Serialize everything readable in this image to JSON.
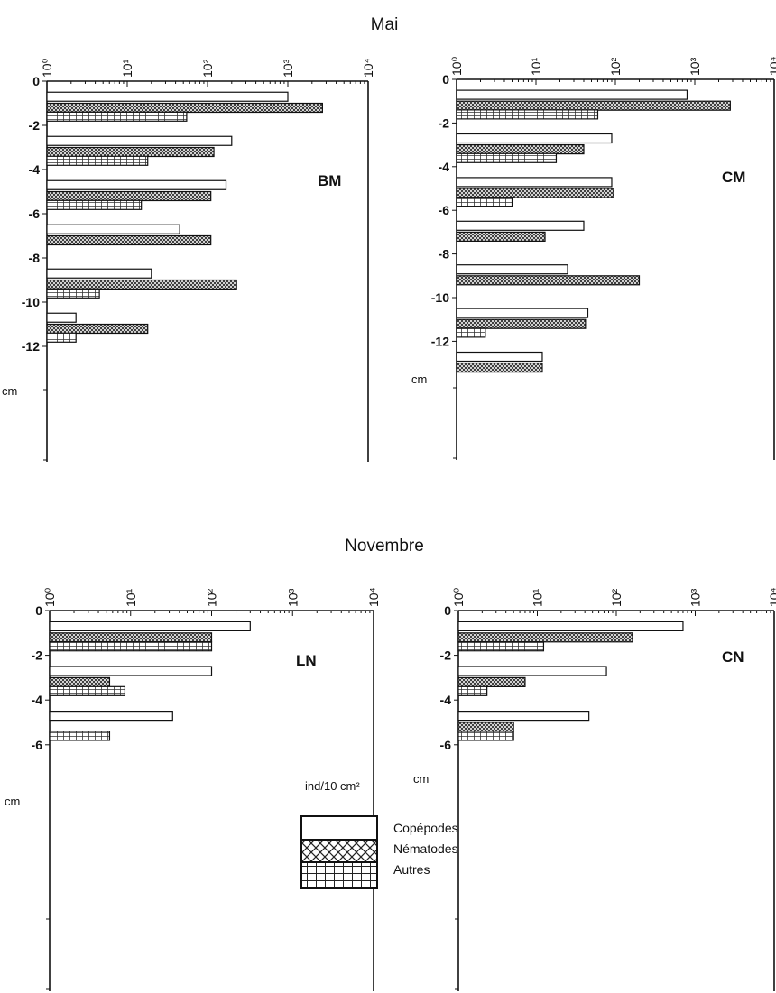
{
  "titles": {
    "top": "Mai",
    "bottom": "Novembre"
  },
  "legend": {
    "unit": "ind/10 cm²",
    "items": [
      {
        "label": "Copépodes",
        "pattern": "copepodes"
      },
      {
        "label": "Nématodes",
        "pattern": "nematodes"
      },
      {
        "label": "Autres",
        "pattern": "autres"
      }
    ]
  },
  "chart_data": [
    {
      "type": "bar",
      "orientation": "horizontal",
      "panel_label": "BM",
      "x_scale": "log",
      "x_range": [
        1,
        10000
      ],
      "x_tick_labels": [
        "10⁰",
        "10¹",
        "10²",
        "10³",
        "10⁴"
      ],
      "y_tick_labels": [
        "0",
        "-2",
        "-4",
        "-6",
        "-8",
        "-10",
        "-12"
      ],
      "y_unit": "cm",
      "categories": [
        "0-2",
        "2-4",
        "4-6",
        "6-8",
        "8-10",
        "10-12"
      ],
      "series": [
        {
          "name": "Copépodes",
          "values": [
            1000,
            200,
            170,
            45,
            20,
            2.3
          ]
        },
        {
          "name": "Nématodes",
          "values": [
            2700,
            120,
            110,
            110,
            230,
            18
          ]
        },
        {
          "name": "Autres",
          "values": [
            55,
            18,
            15,
            null,
            4.5,
            2.3
          ]
        }
      ]
    },
    {
      "type": "bar",
      "orientation": "horizontal",
      "panel_label": "CM",
      "x_scale": "log",
      "x_range": [
        1,
        10000
      ],
      "x_tick_labels": [
        "10⁰",
        "10¹",
        "10²",
        "10³",
        "10⁴"
      ],
      "y_tick_labels": [
        "0",
        "-2",
        "-4",
        "-6",
        "-8",
        "-10",
        "-12"
      ],
      "y_unit": "cm",
      "categories": [
        "0-2",
        "2-4",
        "4-6",
        "6-8",
        "8-10",
        "10-12",
        "12-14"
      ],
      "series": [
        {
          "name": "Copépodes",
          "values": [
            800,
            90,
            90,
            40,
            25,
            45,
            12
          ]
        },
        {
          "name": "Nématodes",
          "values": [
            2800,
            40,
            95,
            13,
            200,
            42,
            12
          ]
        },
        {
          "name": "Autres",
          "values": [
            60,
            18,
            5,
            null,
            null,
            2.3,
            null
          ]
        }
      ]
    },
    {
      "type": "bar",
      "orientation": "horizontal",
      "panel_label": "LN",
      "x_scale": "log",
      "x_range": [
        1,
        10000
      ],
      "x_tick_labels": [
        "10⁰",
        "10¹",
        "10²",
        "10³",
        "10⁴"
      ],
      "y_tick_labels": [
        "0",
        "-2",
        "-4",
        "-6"
      ],
      "y_unit": "cm",
      "categories": [
        "0-2",
        "2-4",
        "4-6"
      ],
      "series": [
        {
          "name": "Copépodes",
          "values": [
            300,
            100,
            33
          ]
        },
        {
          "name": "Nématodes",
          "values": [
            100,
            5.5,
            null
          ]
        },
        {
          "name": "Autres",
          "values": [
            100,
            8.5,
            5.5
          ]
        }
      ]
    },
    {
      "type": "bar",
      "orientation": "horizontal",
      "panel_label": "CN",
      "x_scale": "log",
      "x_range": [
        1,
        10000
      ],
      "x_tick_labels": [
        "10⁰",
        "10¹",
        "10²",
        "10³",
        "10⁴"
      ],
      "y_tick_labels": [
        "0",
        "-2",
        "-4",
        "-6"
      ],
      "y_unit": "cm",
      "categories": [
        "0-2",
        "2-4",
        "4-6"
      ],
      "series": [
        {
          "name": "Copépodes",
          "values": [
            700,
            75,
            45
          ]
        },
        {
          "name": "Nématodes",
          "values": [
            160,
            7,
            5
          ]
        },
        {
          "name": "Autres",
          "values": [
            12,
            2.3,
            5
          ]
        }
      ]
    }
  ]
}
